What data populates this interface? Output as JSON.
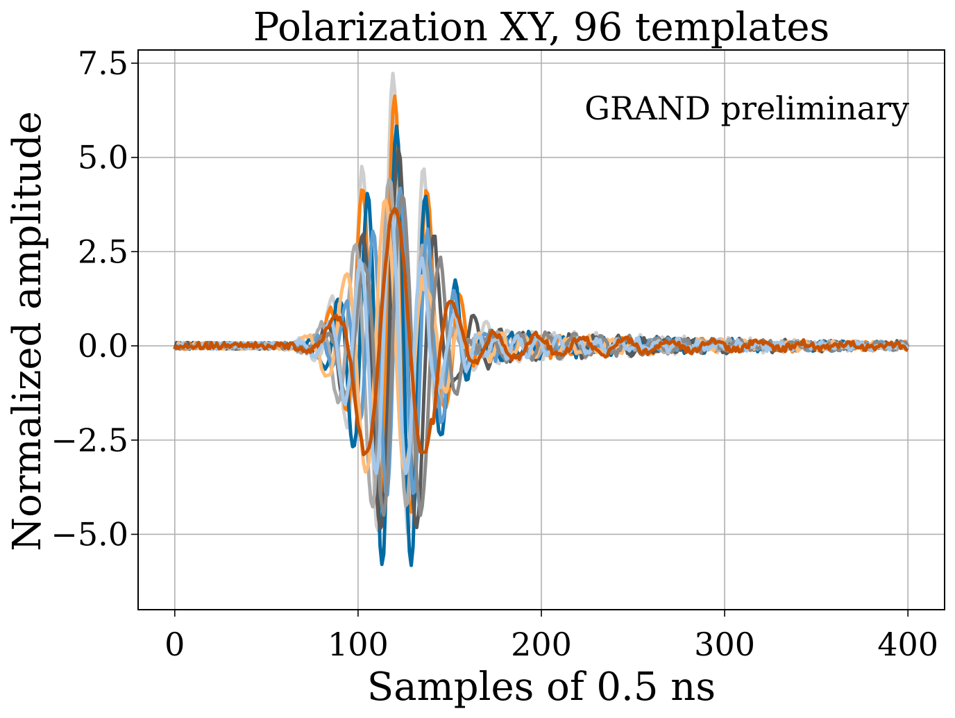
{
  "chart_data": {
    "type": "line",
    "title": "Polarization XY, 96 templates",
    "xlabel": "Samples of 0.5 ns",
    "ylabel": "Normalized amplitude",
    "annotation": "GRAND preliminary",
    "annotation_color": "#dc143c",
    "xlim": [
      -20,
      420
    ],
    "ylim": [
      -7.0,
      7.85
    ],
    "x_ticks": [
      0,
      100,
      200,
      300,
      400
    ],
    "x_tick_labels": [
      "0",
      "100",
      "200",
      "300",
      "400"
    ],
    "y_ticks": [
      7.5,
      5.0,
      2.5,
      0.0,
      -2.5,
      -5.0
    ],
    "y_tick_labels": [
      "7.5",
      "5.0",
      "2.5",
      "0.0",
      "−2.5",
      "−5.0"
    ],
    "grid": true,
    "sample_count": 401,
    "template_count": 96,
    "palette": [
      "#006ba4",
      "#ff800e",
      "#ababab",
      "#595959",
      "#5f9ed1",
      "#c85200",
      "#898989",
      "#a2c8ec",
      "#ffbc79",
      "#cfcfcf"
    ],
    "envelope": {
      "center": 120,
      "peak_max": 7.2,
      "trough_min": -6.4,
      "main_lobe_span": [
        70,
        180
      ],
      "ringing_span": [
        180,
        400
      ],
      "ringing_amplitude": 1.0
    },
    "series": [
      {
        "color": "#cfcfcf",
        "peak": 7.2,
        "trough": -5.5,
        "lobe_offset": -1,
        "period": 17,
        "ring_period": 12,
        "ring_amplitude": 0.6
      },
      {
        "color": "#ff800e",
        "peak": 6.6,
        "trough": -5.0,
        "lobe_offset": 0,
        "period": 18,
        "ring_period": 11,
        "ring_amplitude": 0.45
      },
      {
        "color": "#006ba4",
        "peak": 5.8,
        "trough": -6.4,
        "lobe_offset": 1,
        "period": 16,
        "ring_period": 10,
        "ring_amplitude": 0.5
      },
      {
        "color": "#595959",
        "peak": 5.2,
        "trough": -5.6,
        "lobe_offset": 2,
        "period": 20,
        "ring_period": 13,
        "ring_amplitude": 0.55
      },
      {
        "color": "#ababab",
        "peak": 4.5,
        "trough": -4.8,
        "lobe_offset": -3,
        "period": 19,
        "ring_period": 14,
        "ring_amplitude": 0.4
      },
      {
        "color": "#5f9ed1",
        "peak": 4.2,
        "trough": -4.3,
        "lobe_offset": 3,
        "period": 15,
        "ring_period": 9,
        "ring_amplitude": 0.35
      },
      {
        "color": "#ffbc79",
        "peak": 3.9,
        "trough": -4.0,
        "lobe_offset": -5,
        "period": 22,
        "ring_period": 12,
        "ring_amplitude": 0.45
      },
      {
        "color": "#898989",
        "peak": 4.0,
        "trough": -5.2,
        "lobe_offset": 4,
        "period": 21,
        "ring_period": 15,
        "ring_amplitude": 0.5
      },
      {
        "color": "#a2c8ec",
        "peak": 3.5,
        "trough": -3.8,
        "lobe_offset": -2,
        "period": 17,
        "ring_period": 11,
        "ring_amplitude": 0.4
      },
      {
        "color": "#c85200",
        "peak": 3.7,
        "trough": -4.3,
        "lobe_offset": 0,
        "period": 34,
        "ring_period": 24,
        "ring_amplitude": 0.5
      }
    ]
  }
}
